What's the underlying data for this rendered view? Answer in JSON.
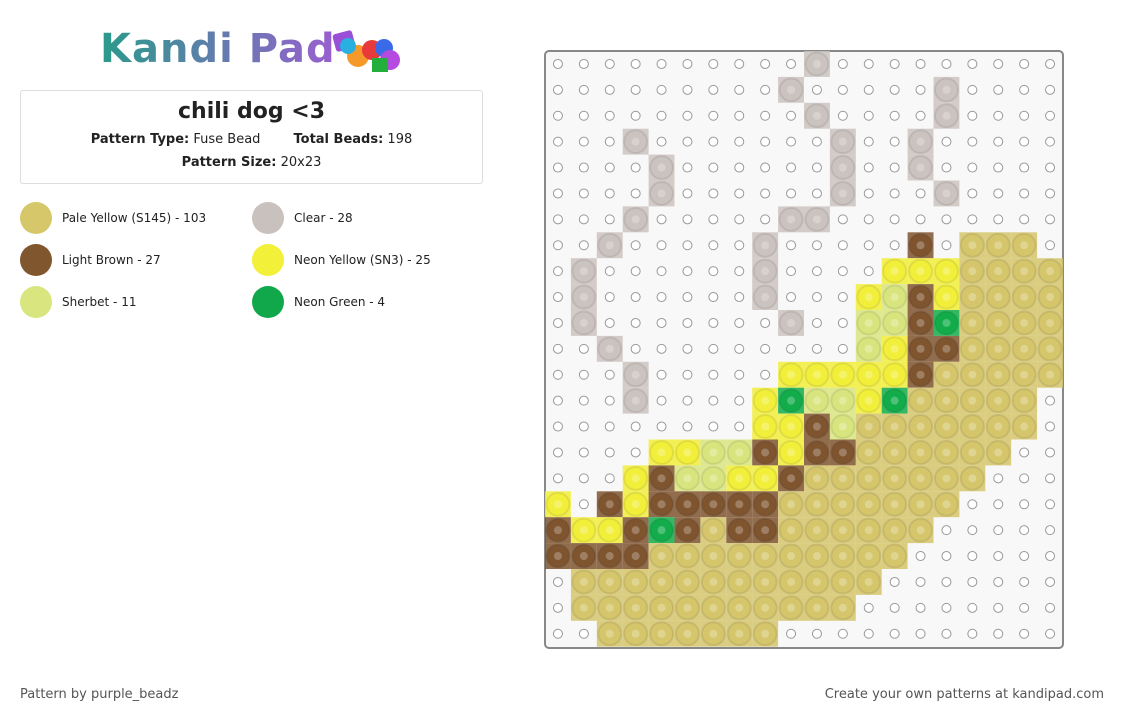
{
  "header": {
    "logo": "Kandi Pad"
  },
  "pattern": {
    "title": "chili dog <3",
    "type_label": "Pattern Type:",
    "type": "Fuse Bead",
    "total_label": "Total Beads:",
    "total": "198",
    "size_label": "Pattern Size:",
    "size": "20x23",
    "empty_color": "#ffffff",
    "grid": [
      [
        null,
        null,
        null,
        null,
        null,
        null,
        null,
        null,
        null,
        null,
        "#cbc3bf",
        null,
        null,
        null,
        null,
        null,
        null,
        null,
        null,
        null
      ],
      [
        null,
        null,
        null,
        null,
        null,
        null,
        null,
        null,
        null,
        "#cbc3bf",
        null,
        null,
        null,
        null,
        null,
        "#cbc3bf",
        null,
        null,
        null,
        null
      ],
      [
        null,
        null,
        null,
        null,
        null,
        null,
        null,
        null,
        null,
        null,
        "#cbc3bf",
        null,
        null,
        null,
        null,
        "#cbc3bf",
        null,
        null,
        null,
        null
      ],
      [
        null,
        null,
        null,
        "#cbc3bf",
        null,
        null,
        null,
        null,
        null,
        null,
        null,
        "#cbc3bf",
        null,
        null,
        "#cbc3bf",
        null,
        null,
        null,
        null,
        null
      ],
      [
        null,
        null,
        null,
        null,
        "#cbc3bf",
        null,
        null,
        null,
        null,
        null,
        null,
        "#cbc3bf",
        null,
        null,
        "#cbc3bf",
        null,
        null,
        null,
        null,
        null
      ],
      [
        null,
        null,
        null,
        null,
        "#cbc3bf",
        null,
        null,
        null,
        null,
        null,
        null,
        "#cbc3bf",
        null,
        null,
        null,
        "#cbc3bf",
        null,
        null,
        null,
        null
      ],
      [
        null,
        null,
        null,
        "#cbc3bf",
        null,
        null,
        null,
        null,
        null,
        "#cbc3bf",
        "#cbc3bf",
        null,
        null,
        null,
        null,
        null,
        null,
        null,
        null,
        null
      ],
      [
        null,
        null,
        "#cbc3bf",
        null,
        null,
        null,
        null,
        null,
        "#cbc3bf",
        null,
        null,
        null,
        null,
        null,
        "#7f5530",
        null,
        "#d5c66b",
        "#d5c66b",
        "#d5c66b",
        null
      ],
      [
        null,
        "#cbc3bf",
        null,
        null,
        null,
        null,
        null,
        null,
        "#cbc3bf",
        null,
        null,
        null,
        null,
        "#f2ef3a",
        "#f2ef3a",
        "#f2ef3a",
        "#d5c66b",
        "#d5c66b",
        "#d5c66b",
        "#d5c66b"
      ],
      [
        null,
        "#cbc3bf",
        null,
        null,
        null,
        null,
        null,
        null,
        "#cbc3bf",
        null,
        null,
        null,
        "#f2ef3a",
        "#d8e57e",
        "#7f5530",
        "#f2ef3a",
        "#d5c66b",
        "#d5c66b",
        "#d5c66b",
        "#d5c66b"
      ],
      [
        null,
        "#cbc3bf",
        null,
        null,
        null,
        null,
        null,
        null,
        null,
        "#cbc3bf",
        null,
        null,
        "#d8e57e",
        "#d8e57e",
        "#7f5530",
        "#12ad4a",
        "#d5c66b",
        "#d5c66b",
        "#d5c66b",
        "#d5c66b"
      ],
      [
        null,
        null,
        "#cbc3bf",
        null,
        null,
        null,
        null,
        null,
        null,
        null,
        null,
        null,
        "#d8e57e",
        "#f2ef3a",
        "#7f5530",
        "#7f5530",
        "#d5c66b",
        "#d5c66b",
        "#d5c66b",
        "#d5c66b"
      ],
      [
        null,
        null,
        null,
        "#cbc3bf",
        null,
        null,
        null,
        null,
        null,
        "#f2ef3a",
        "#f2ef3a",
        "#f2ef3a",
        "#f2ef3a",
        "#f2ef3a",
        "#7f5530",
        "#d5c66b",
        "#d5c66b",
        "#d5c66b",
        "#d5c66b",
        "#d5c66b"
      ],
      [
        null,
        null,
        null,
        "#cbc3bf",
        null,
        null,
        null,
        null,
        "#f2ef3a",
        "#12ad4a",
        "#d8e57e",
        "#d8e57e",
        "#f2ef3a",
        "#12ad4a",
        "#d5c66b",
        "#d5c66b",
        "#d5c66b",
        "#d5c66b",
        "#d5c66b",
        null
      ],
      [
        null,
        null,
        null,
        null,
        null,
        null,
        null,
        null,
        "#f2ef3a",
        "#f2ef3a",
        "#7f5530",
        "#d8e57e",
        "#d5c66b",
        "#d5c66b",
        "#d5c66b",
        "#d5c66b",
        "#d5c66b",
        "#d5c66b",
        "#d5c66b",
        null
      ],
      [
        null,
        null,
        null,
        null,
        "#f2ef3a",
        "#f2ef3a",
        "#d8e57e",
        "#d8e57e",
        "#7f5530",
        "#f2ef3a",
        "#7f5530",
        "#7f5530",
        "#d5c66b",
        "#d5c66b",
        "#d5c66b",
        "#d5c66b",
        "#d5c66b",
        "#d5c66b",
        null,
        null
      ],
      [
        null,
        null,
        null,
        "#f2ef3a",
        "#7f5530",
        "#d8e57e",
        "#d8e57e",
        "#f2ef3a",
        "#f2ef3a",
        "#7f5530",
        "#d5c66b",
        "#d5c66b",
        "#d5c66b",
        "#d5c66b",
        "#d5c66b",
        "#d5c66b",
        "#d5c66b",
        null,
        null,
        null
      ],
      [
        "#f2ef3a",
        null,
        "#7f5530",
        "#f2ef3a",
        "#7f5530",
        "#7f5530",
        "#7f5530",
        "#7f5530",
        "#7f5530",
        "#d5c66b",
        "#d5c66b",
        "#d5c66b",
        "#d5c66b",
        "#d5c66b",
        "#d5c66b",
        "#d5c66b",
        null,
        null,
        null,
        null
      ],
      [
        "#7f5530",
        "#f2ef3a",
        "#f2ef3a",
        "#7f5530",
        "#12ad4a",
        "#7f5530",
        "#d5c66b",
        "#7f5530",
        "#7f5530",
        "#d5c66b",
        "#d5c66b",
        "#d5c66b",
        "#d5c66b",
        "#d5c66b",
        "#d5c66b",
        null,
        null,
        null,
        null,
        null
      ],
      [
        "#7f5530",
        "#7f5530",
        "#7f5530",
        "#7f5530",
        "#d5c66b",
        "#d5c66b",
        "#d5c66b",
        "#d5c66b",
        "#d5c66b",
        "#d5c66b",
        "#d5c66b",
        "#d5c66b",
        "#d5c66b",
        "#d5c66b",
        null,
        null,
        null,
        null,
        null,
        null
      ],
      [
        null,
        "#d5c66b",
        "#d5c66b",
        "#d5c66b",
        "#d5c66b",
        "#d5c66b",
        "#d5c66b",
        "#d5c66b",
        "#d5c66b",
        "#d5c66b",
        "#d5c66b",
        "#d5c66b",
        "#d5c66b",
        null,
        null,
        null,
        null,
        null,
        null,
        null
      ],
      [
        null,
        "#d5c66b",
        "#d5c66b",
        "#d5c66b",
        "#d5c66b",
        "#d5c66b",
        "#d5c66b",
        "#d5c66b",
        "#d5c66b",
        "#d5c66b",
        "#d5c66b",
        "#d5c66b",
        null,
        null,
        null,
        null,
        null,
        null,
        null,
        null
      ],
      [
        null,
        null,
        "#d5c66b",
        "#d5c66b",
        "#d5c66b",
        "#d5c66b",
        "#d5c66b",
        "#d5c66b",
        "#d5c66b",
        null,
        null,
        null,
        null,
        null,
        null,
        null,
        null,
        null,
        null,
        null
      ]
    ]
  },
  "legend": [
    {
      "label": "Pale Yellow (S145) - 103",
      "color": "#d6c86a"
    },
    {
      "label": "Clear - 28",
      "color": "#c9c1bd"
    },
    {
      "label": "Light Brown - 27",
      "color": "#80562e"
    },
    {
      "label": "Neon Yellow (SN3) - 25",
      "color": "#f3f03a"
    },
    {
      "label": "Sherbet - 11",
      "color": "#d9e67f"
    },
    {
      "label": "Neon Green - 4",
      "color": "#10a84a"
    }
  ],
  "footer": {
    "credit": "Pattern by purple_beadz",
    "promo": "Create your own patterns at kandipad.com"
  }
}
